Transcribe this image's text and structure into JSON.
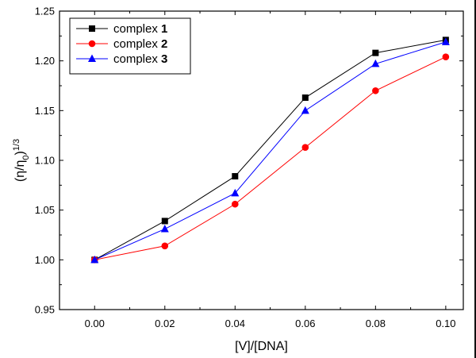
{
  "chart_data": {
    "type": "line",
    "xlabel": "[V]/[DNA]",
    "ylabel": {
      "main": "(η/η",
      "sub": "0",
      "close": ")",
      "sup": "1/3"
    },
    "xlim": [
      -0.01,
      0.105
    ],
    "ylim": [
      0.95,
      1.25
    ],
    "xticks": [
      "0.00",
      "0.02",
      "0.04",
      "0.06",
      "0.08",
      "0.10"
    ],
    "xtick_values": [
      0.0,
      0.02,
      0.04,
      0.06,
      0.08,
      0.1
    ],
    "yticks": [
      "0.95",
      "1.00",
      "1.05",
      "1.10",
      "1.15",
      "1.20",
      "1.25"
    ],
    "ytick_values": [
      0.95,
      1.0,
      1.05,
      1.1,
      1.15,
      1.2,
      1.25
    ],
    "x": [
      0.0,
      0.02,
      0.04,
      0.06,
      0.08,
      0.1
    ],
    "grid": false,
    "legend_position": "top-left",
    "series": [
      {
        "name": "complex",
        "num": "1",
        "color": "#000000",
        "marker": "square",
        "values": [
          1.0,
          1.039,
          1.084,
          1.163,
          1.208,
          1.221
        ]
      },
      {
        "name": "complex",
        "num": "2",
        "color": "#ff0000",
        "marker": "circle",
        "values": [
          1.0,
          1.014,
          1.056,
          1.113,
          1.17,
          1.204
        ]
      },
      {
        "name": "complex",
        "num": "3",
        "color": "#0000ff",
        "marker": "triangle",
        "values": [
          1.0,
          1.031,
          1.067,
          1.15,
          1.197,
          1.219
        ]
      }
    ]
  }
}
